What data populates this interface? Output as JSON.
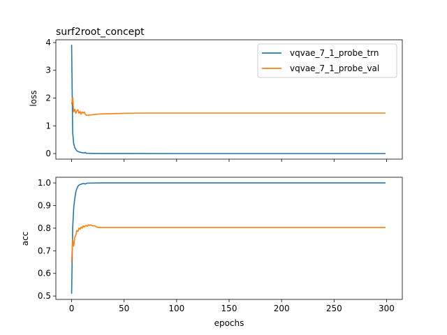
{
  "chart_data": [
    {
      "type": "line",
      "title": "surf2root_concept",
      "ylabel": "loss",
      "xlabel": "",
      "xlim": [
        -15,
        315
      ],
      "ylim": [
        -0.2,
        4.1
      ],
      "xticks": [
        0,
        50,
        100,
        150,
        200,
        250,
        300
      ],
      "yticks": [
        0,
        1,
        2,
        3,
        4
      ],
      "show_xtick_labels": false,
      "legend": {
        "position": "top-right"
      },
      "series": [
        {
          "name": "vqvae_7_1_probe_trn",
          "color": "#1f77b4",
          "points": [
            [
              0,
              3.92
            ],
            [
              1,
              0.75
            ],
            [
              2,
              0.35
            ],
            [
              3,
              0.22
            ],
            [
              4,
              0.15
            ],
            [
              5,
              0.1
            ],
            [
              6,
              0.08
            ],
            [
              7,
              0.06
            ],
            [
              8,
              0.05
            ],
            [
              9,
              0.04
            ],
            [
              10,
              0.03
            ],
            [
              11,
              0.03
            ],
            [
              12,
              0.02
            ],
            [
              13,
              0.04
            ],
            [
              14,
              0.01
            ],
            [
              15,
              0.01
            ],
            [
              20,
              0.005
            ],
            [
              30,
              0.003
            ],
            [
              50,
              0.002
            ],
            [
              100,
              0.001
            ],
            [
              200,
              0.001
            ],
            [
              299,
              0.001
            ]
          ]
        },
        {
          "name": "vqvae_7_1_probe_val",
          "color": "#ff7f0e",
          "points": [
            [
              0,
              1.78
            ],
            [
              1,
              2.02
            ],
            [
              2,
              1.5
            ],
            [
              3,
              1.6
            ],
            [
              4,
              1.45
            ],
            [
              5,
              1.55
            ],
            [
              6,
              1.58
            ],
            [
              7,
              1.45
            ],
            [
              8,
              1.52
            ],
            [
              9,
              1.42
            ],
            [
              10,
              1.5
            ],
            [
              11,
              1.46
            ],
            [
              12,
              1.5
            ],
            [
              13,
              1.42
            ],
            [
              14,
              1.38
            ],
            [
              15,
              1.38
            ],
            [
              20,
              1.4
            ],
            [
              25,
              1.42
            ],
            [
              30,
              1.43
            ],
            [
              40,
              1.44
            ],
            [
              50,
              1.45
            ],
            [
              70,
              1.46
            ],
            [
              100,
              1.46
            ],
            [
              150,
              1.46
            ],
            [
              200,
              1.46
            ],
            [
              250,
              1.46
            ],
            [
              299,
              1.46
            ]
          ]
        }
      ]
    },
    {
      "type": "line",
      "title": "",
      "ylabel": "acc",
      "xlabel": "epochs",
      "xlim": [
        -15,
        315
      ],
      "ylim": [
        0.485,
        1.025
      ],
      "xticks": [
        0,
        50,
        100,
        150,
        200,
        250,
        300
      ],
      "yticks": [
        0.5,
        0.6,
        0.7,
        0.8,
        0.9,
        1.0
      ],
      "ytick_labels": [
        "0.5",
        "0.6",
        "0.7",
        "0.8",
        "0.9",
        "1.0"
      ],
      "show_xtick_labels": true,
      "series": [
        {
          "name": "vqvae_7_1_probe_trn",
          "color": "#1f77b4",
          "points": [
            [
              0,
              0.51
            ],
            [
              1,
              0.8
            ],
            [
              2,
              0.89
            ],
            [
              3,
              0.93
            ],
            [
              4,
              0.96
            ],
            [
              5,
              0.975
            ],
            [
              6,
              0.985
            ],
            [
              7,
              0.99
            ],
            [
              8,
              0.993
            ],
            [
              9,
              0.994
            ],
            [
              10,
              0.996
            ],
            [
              11,
              0.997
            ],
            [
              12,
              0.997
            ],
            [
              13,
              0.995
            ],
            [
              14,
              0.998
            ],
            [
              15,
              0.999
            ],
            [
              20,
              0.9995
            ],
            [
              30,
              1.0
            ],
            [
              299,
              1.0
            ]
          ]
        },
        {
          "name": "vqvae_7_1_probe_val",
          "color": "#ff7f0e",
          "points": [
            [
              0,
              0.65
            ],
            [
              1,
              0.75
            ],
            [
              2,
              0.72
            ],
            [
              3,
              0.76
            ],
            [
              4,
              0.77
            ],
            [
              5,
              0.79
            ],
            [
              6,
              0.785
            ],
            [
              7,
              0.8
            ],
            [
              8,
              0.795
            ],
            [
              9,
              0.805
            ],
            [
              10,
              0.8
            ],
            [
              11,
              0.81
            ],
            [
              12,
              0.805
            ],
            [
              13,
              0.81
            ],
            [
              14,
              0.812
            ],
            [
              15,
              0.808
            ],
            [
              16,
              0.815
            ],
            [
              17,
              0.812
            ],
            [
              18,
              0.815
            ],
            [
              19,
              0.812
            ],
            [
              20,
              0.81
            ],
            [
              22,
              0.81
            ],
            [
              24,
              0.805
            ],
            [
              26,
              0.803
            ],
            [
              30,
              0.803
            ],
            [
              50,
              0.803
            ],
            [
              100,
              0.803
            ],
            [
              200,
              0.803
            ],
            [
              299,
              0.803
            ]
          ]
        }
      ]
    }
  ]
}
